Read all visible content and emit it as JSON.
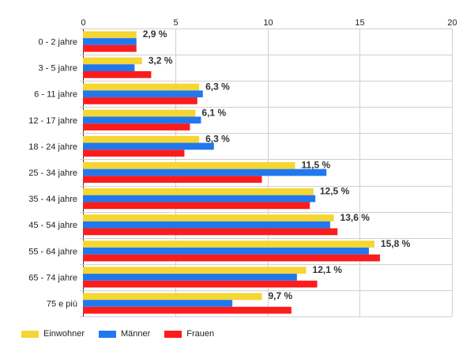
{
  "chart_data": {
    "type": "bar",
    "orientation": "horizontal",
    "categories": [
      "0 - 2 jahre",
      "3 - 5 jahre",
      "6 - 11 jahre",
      "12 - 17 jahre",
      "18 - 24 jahre",
      "25 - 34 jahre",
      "35 - 44 jahre",
      "45 - 54 jahre",
      "55 - 64 jahre",
      "65 - 74 jahre",
      "75 e più"
    ],
    "series": [
      {
        "name": "Einwohner",
        "color": "#f5d632",
        "values": [
          2.9,
          3.2,
          6.3,
          6.1,
          6.3,
          11.5,
          12.5,
          13.6,
          15.8,
          12.1,
          9.7
        ]
      },
      {
        "name": "Männer",
        "color": "#2178ee",
        "values": [
          2.9,
          2.8,
          6.5,
          6.4,
          7.1,
          13.2,
          12.6,
          13.4,
          15.5,
          11.6,
          8.1
        ]
      },
      {
        "name": "Frauen",
        "color": "#fc1c1c",
        "values": [
          2.9,
          3.7,
          6.2,
          5.8,
          5.5,
          9.7,
          12.3,
          13.8,
          16.1,
          12.7,
          11.3
        ]
      }
    ],
    "data_labels": [
      "2,9 %",
      "3,2 %",
      "6,3 %",
      "6,1 %",
      "6,3 %",
      "11,5 %",
      "12,5 %",
      "13,6 %",
      "15,8 %",
      "12,1 %",
      "9,7 %"
    ],
    "xticks": [
      "0",
      "5",
      "10",
      "15",
      "20"
    ],
    "xlim": [
      0,
      20
    ],
    "grid": true,
    "legend_position": "bottom-left",
    "title": "",
    "xlabel": "",
    "ylabel": ""
  }
}
